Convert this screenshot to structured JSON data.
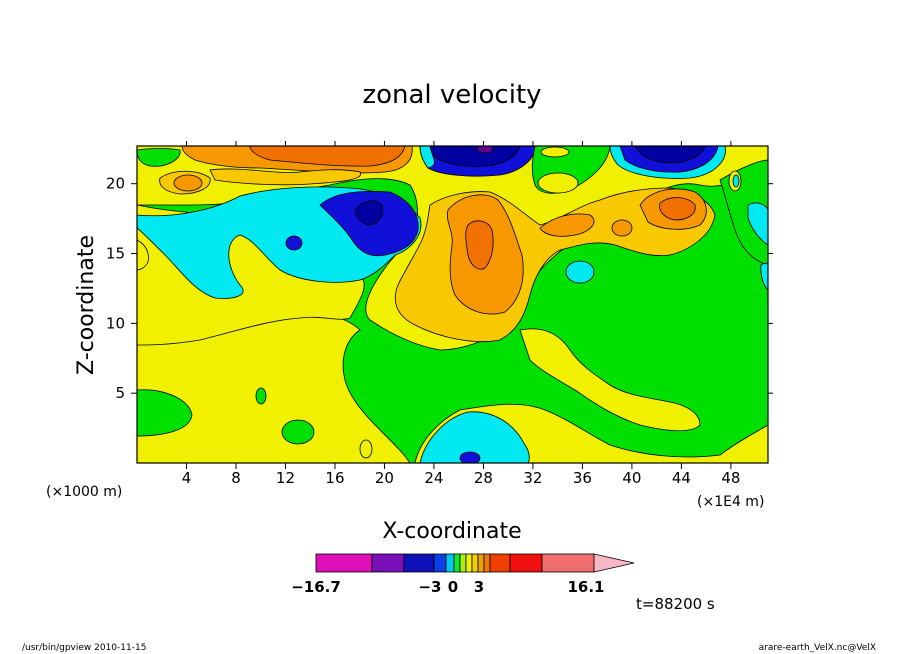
{
  "chart_data": {
    "type": "heatmap",
    "title": "zonal velocity",
    "xlabel": "X-coordinate",
    "ylabel": "Z-coordinate",
    "x_ticks": [
      4,
      8,
      12,
      16,
      20,
      24,
      28,
      32,
      36,
      40,
      44,
      48
    ],
    "y_ticks": [
      5,
      10,
      15,
      20
    ],
    "xlim": [
      0,
      51
    ],
    "ylim": [
      0,
      22.7
    ],
    "x_unit_left": "(×1000 m)",
    "x_unit_right": "(×1E4 m)",
    "colorbar": {
      "min_label": "−16.7",
      "max_label": "16.1",
      "mid_labels": [
        "−3",
        "0",
        "3"
      ],
      "colors": [
        "#e010b8",
        "#7a10b8",
        "#1010b8",
        "#0a40e8",
        "#00c8f0",
        "#10e830",
        "#a8f010",
        "#f0f000",
        "#f0d000",
        "#f0a000",
        "#f07800",
        "#f04000",
        "#f01010",
        "#f07070",
        "#f8b8c8"
      ]
    },
    "levels": [
      -16.7,
      -12,
      -8,
      -5,
      -3,
      -1.5,
      0,
      1.5,
      3,
      5,
      7,
      9,
      12,
      16.1
    ],
    "level_colors": {
      "strong_negative": "#0000a0",
      "negative": "#1010d8",
      "weak_negative": "#00e8f0",
      "near_zero": "#00e000",
      "weak_positive": "#f0f000",
      "positive": "#f8c800",
      "moderate_positive": "#f89800",
      "strong_positive": "#f07000",
      "very_strong_positive": "#e84000"
    },
    "grid": false
  },
  "annotations": {
    "time": "t=88200 s",
    "footer_left": "/usr/bin/gpview   2010-11-15",
    "footer_right": "arare-earth_VelX.nc@VelX"
  }
}
